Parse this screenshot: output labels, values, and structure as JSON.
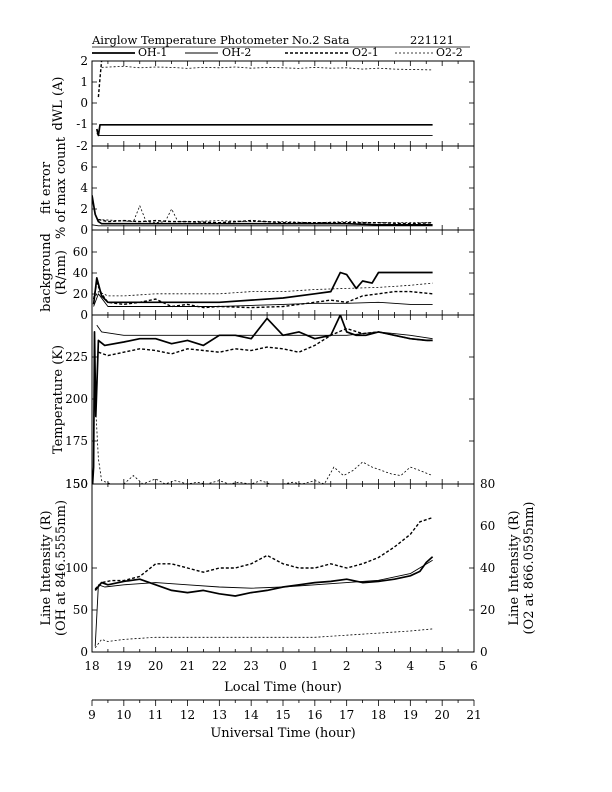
{
  "header": {
    "title": "Airglow Temperature Photometer No.2  Sata",
    "date": "221121"
  },
  "legend": [
    {
      "name": "OH-1",
      "style": "solid-thick"
    },
    {
      "name": "OH-2",
      "style": "solid-thin"
    },
    {
      "name": "O2-1",
      "style": "dashed-thick"
    },
    {
      "name": "O2-2",
      "style": "dashed-thin"
    }
  ],
  "chart_data": [
    {
      "type": "line",
      "id": "dwl",
      "ylabel": "dWL (A)",
      "ylim": [
        -2,
        2
      ],
      "yticks": [
        "2",
        "1",
        "0",
        "-1",
        "-2"
      ],
      "series": [
        {
          "name": "OH-1",
          "x": [
            18.15,
            18.2,
            18.25,
            18.4,
            19,
            20,
            21,
            22,
            23,
            24,
            25,
            26,
            27,
            28,
            28.7
          ],
          "y": [
            -1.2,
            -1.5,
            -1.0,
            -1.0,
            -1.0,
            -1.0,
            -1.0,
            -1.0,
            -1.0,
            -1.0,
            -1.0,
            -1.0,
            -1.0,
            -1.0,
            -1.0
          ]
        },
        {
          "name": "OH-2",
          "x": [
            18.15,
            18.2,
            18.3,
            19,
            20,
            21,
            22,
            23,
            24,
            25,
            26,
            27,
            28,
            28.7
          ],
          "y": [
            -1.4,
            -1.5,
            -1.5,
            -1.5,
            -1.5,
            -1.5,
            -1.5,
            -1.5,
            -1.5,
            -1.5,
            -1.5,
            -1.5,
            -1.5,
            -1.5
          ]
        },
        {
          "name": "O2-1",
          "x": [
            18.2,
            18.25,
            18.3
          ],
          "y": [
            0.3,
            1.2,
            2.0
          ]
        },
        {
          "name": "O2-2",
          "x": [
            18.3,
            19,
            19.5,
            20,
            20.5,
            21,
            21.5,
            22,
            22.5,
            23,
            23.5,
            24,
            24.5,
            25,
            25.5,
            26,
            26.5,
            27,
            27.5,
            28,
            28.7
          ],
          "y": [
            1.7,
            1.75,
            1.68,
            1.72,
            1.7,
            1.65,
            1.7,
            1.68,
            1.72,
            1.66,
            1.7,
            1.68,
            1.65,
            1.7,
            1.66,
            1.68,
            1.62,
            1.66,
            1.62,
            1.6,
            1.58
          ]
        }
      ]
    },
    {
      "type": "line",
      "id": "fit-error",
      "ylabel": "fit error",
      "ylabel2": "% of max count",
      "ylim": [
        0,
        8
      ],
      "yticks": [
        "6",
        "4",
        "2",
        "0"
      ],
      "series": [
        {
          "name": "OH-1",
          "x": [
            18.0,
            18.1,
            18.2,
            18.3,
            19,
            20,
            21,
            22,
            23,
            24,
            25,
            26,
            27,
            28,
            28.7
          ],
          "y": [
            3.3,
            1.5,
            0.8,
            0.6,
            0.6,
            0.6,
            0.6,
            0.6,
            0.6,
            0.6,
            0.6,
            0.6,
            0.5,
            0.5,
            0.5
          ]
        },
        {
          "name": "OH-2",
          "x": [
            18.0,
            18.2,
            19,
            20,
            21,
            22,
            23,
            24,
            25,
            26,
            27,
            28,
            28.7
          ],
          "y": [
            0.5,
            0.4,
            0.4,
            0.4,
            0.4,
            0.4,
            0.4,
            0.4,
            0.4,
            0.4,
            0.4,
            0.4,
            0.4
          ]
        },
        {
          "name": "O2-1",
          "x": [
            18.2,
            18.5,
            19,
            19.5,
            20,
            20.5,
            21,
            22,
            23,
            24,
            25,
            26,
            27,
            28,
            28.7
          ],
          "y": [
            1.0,
            0.8,
            0.9,
            0.8,
            0.9,
            0.8,
            0.8,
            0.7,
            0.9,
            0.7,
            0.7,
            0.7,
            0.7,
            0.6,
            0.7
          ]
        },
        {
          "name": "O2-2",
          "x": [
            18.2,
            18.8,
            19.3,
            19.5,
            19.7,
            20.0,
            20.3,
            20.5,
            20.7,
            21,
            22,
            23,
            24,
            25,
            26,
            27,
            28,
            28.7
          ],
          "y": [
            1.0,
            0.9,
            0.8,
            2.3,
            0.8,
            0.7,
            0.8,
            2.0,
            0.8,
            0.8,
            0.9,
            0.8,
            0.8,
            0.7,
            0.8,
            0.7,
            0.7,
            0.7
          ]
        }
      ]
    },
    {
      "type": "line",
      "id": "background",
      "ylabel": "background",
      "ylabel2": "(R/nm)",
      "ylim": [
        0,
        80
      ],
      "yticks": [
        "60",
        "40",
        "20",
        "0"
      ],
      "series": [
        {
          "name": "OH-1",
          "x": [
            18.05,
            18.15,
            18.3,
            18.5,
            19,
            20,
            21,
            22,
            23,
            24,
            25,
            25.5,
            25.8,
            26.0,
            26.3,
            26.5,
            26.8,
            27,
            27.2,
            28,
            28.7
          ],
          "y": [
            10,
            35,
            18,
            12,
            12,
            12,
            12,
            12,
            14,
            16,
            20,
            22,
            40,
            38,
            25,
            32,
            30,
            40,
            40,
            40,
            40
          ]
        },
        {
          "name": "OH-2",
          "x": [
            18.05,
            18.2,
            18.5,
            19,
            20,
            21,
            22,
            23,
            24,
            25,
            26,
            27,
            28,
            28.7
          ],
          "y": [
            8,
            20,
            8,
            8,
            8,
            8,
            8,
            9,
            10,
            11,
            11,
            12,
            10,
            10
          ]
        },
        {
          "name": "O2-1",
          "x": [
            18.05,
            18.15,
            18.3,
            18.5,
            19,
            19.5,
            20,
            20.5,
            21,
            21.5,
            22,
            23,
            24,
            24.5,
            25,
            25.5,
            26,
            26.5,
            27,
            27.5,
            28,
            28.7
          ],
          "y": [
            15,
            30,
            20,
            12,
            10,
            12,
            15,
            8,
            10,
            7,
            8,
            7,
            8,
            10,
            12,
            14,
            12,
            18,
            20,
            22,
            22,
            20
          ]
        },
        {
          "name": "O2-2",
          "x": [
            18.05,
            18.2,
            18.5,
            19,
            20,
            21,
            22,
            23,
            24,
            25,
            26,
            27,
            28,
            28.7
          ],
          "y": [
            15,
            22,
            18,
            18,
            20,
            20,
            20,
            22,
            22,
            24,
            25,
            26,
            28,
            30
          ]
        }
      ]
    },
    {
      "type": "line",
      "id": "temperature",
      "ylabel": "Temperature (K)",
      "ylim": [
        150,
        250
      ],
      "yticks": [
        "225",
        "200",
        "175",
        "150"
      ],
      "series": [
        {
          "name": "OH-1",
          "x": [
            18.02,
            18.05,
            18.08,
            18.12,
            18.2,
            18.4,
            19,
            19.5,
            20,
            20.5,
            21,
            21.5,
            22,
            22.5,
            23,
            23.5,
            24,
            24.5,
            25,
            25.5,
            25.8,
            26.0,
            26.3,
            26.6,
            27,
            27.5,
            28,
            28.5,
            28.7
          ],
          "y": [
            150,
            160,
            240,
            190,
            235,
            232,
            234,
            236,
            236,
            233,
            235,
            232,
            238,
            238,
            236,
            248,
            238,
            240,
            236,
            238,
            250,
            240,
            238,
            238,
            240,
            238,
            236,
            235,
            235
          ]
        },
        {
          "name": "OH-2",
          "x": [
            18.15,
            18.3,
            19,
            20,
            21,
            22,
            23,
            24,
            25,
            26,
            27,
            28,
            28.7
          ],
          "y": [
            244,
            240,
            238,
            238,
            238,
            238,
            238,
            238,
            238,
            238,
            240,
            238,
            236
          ]
        },
        {
          "name": "O2-1",
          "x": [
            18.2,
            18.5,
            19,
            19.5,
            20,
            20.5,
            21,
            21.5,
            22,
            22.5,
            23,
            23.5,
            24,
            24.5,
            25,
            25.5,
            26,
            26.5,
            27,
            27.5,
            28,
            28.5,
            28.7
          ],
          "y": [
            228,
            226,
            228,
            230,
            229,
            227,
            230,
            229,
            228,
            230,
            229,
            231,
            230,
            228,
            232,
            238,
            242,
            239,
            240,
            238,
            236,
            235,
            235
          ]
        },
        {
          "name": "O2-2",
          "x": [
            18.1,
            18.2,
            18.3,
            18.6,
            19,
            19.3,
            19.6,
            20,
            20.3,
            20.6,
            21,
            21.3,
            21.6,
            22,
            22.3,
            22.6,
            23,
            23.3,
            23.6,
            24,
            24.3,
            24.6,
            25,
            25.3,
            25.6,
            25.9,
            26.2,
            26.5,
            26.8,
            27.1,
            27.4,
            27.7,
            28,
            28.3,
            28.7
          ],
          "y": [
            200,
            165,
            152,
            150,
            150,
            155,
            150,
            153,
            150,
            152,
            150,
            151,
            150,
            152,
            150,
            151,
            150,
            152,
            150,
            150,
            151,
            150,
            152,
            150,
            160,
            155,
            158,
            163,
            160,
            158,
            156,
            155,
            160,
            158,
            155
          ]
        }
      ]
    },
    {
      "type": "line",
      "id": "line-intensity",
      "ylabel": "Line Intensity (R)",
      "ylabel2": "(OH at 846.5555nm)",
      "ylim": [
        0,
        150
      ],
      "yticks": [
        "150",
        "100",
        "50",
        "0"
      ],
      "ylabel_right": "Line Intensity (R)",
      "ylabel_right2": "(O2 at 866.0595nm)",
      "ylim_right": [
        0,
        80
      ],
      "yticks_right": [
        "80",
        "60",
        "40",
        "20",
        "0"
      ],
      "xlabel": "Local Time (hour)",
      "xlim": [
        18,
        30
      ],
      "xticks": [
        "18",
        "19",
        "20",
        "21",
        "22",
        "23",
        "0",
        "1",
        "2",
        "3",
        "4",
        "5",
        "6"
      ],
      "xlabel_secondary": "Universal Time (hour)",
      "xticks_secondary": [
        "9",
        "10",
        "11",
        "12",
        "13",
        "14",
        "15",
        "16",
        "17",
        "18",
        "19",
        "20",
        "21"
      ],
      "series": [
        {
          "name": "OH-1",
          "axis": "left",
          "x": [
            18.1,
            18.3,
            18.5,
            19,
            19.5,
            20,
            20.5,
            21,
            21.5,
            22,
            22.5,
            23,
            23.5,
            24,
            24.5,
            25,
            25.5,
            26,
            26.5,
            27,
            27.5,
            28,
            28.3,
            28.5,
            28.7
          ],
          "y": [
            55,
            62,
            60,
            63,
            65,
            60,
            55,
            53,
            55,
            52,
            50,
            53,
            55,
            58,
            60,
            62,
            63,
            65,
            62,
            63,
            65,
            68,
            72,
            80,
            85
          ]
        },
        {
          "name": "OH-2",
          "axis": "left",
          "x": [
            18.1,
            18.2,
            18.4,
            19,
            20,
            21,
            22,
            23,
            24,
            25,
            26,
            27,
            28,
            28.7
          ],
          "y": [
            5,
            60,
            58,
            60,
            62,
            60,
            58,
            57,
            58,
            60,
            62,
            64,
            70,
            82
          ]
        },
        {
          "name": "O2-1",
          "axis": "right",
          "x": [
            18.1,
            18.3,
            18.6,
            19,
            19.5,
            20,
            20.5,
            21,
            21.5,
            22,
            22.5,
            23,
            23.5,
            24,
            24.5,
            25,
            25.5,
            26,
            26.5,
            27,
            27.5,
            28,
            28.3,
            28.7
          ],
          "y": [
            30,
            33,
            34,
            34,
            36,
            42,
            42,
            40,
            38,
            40,
            40,
            42,
            46,
            42,
            40,
            40,
            42,
            40,
            42,
            45,
            50,
            56,
            62,
            64
          ]
        },
        {
          "name": "O2-2",
          "axis": "right",
          "x": [
            18.1,
            18.3,
            18.5,
            19,
            20,
            21,
            22,
            23,
            24,
            25,
            26,
            27,
            28,
            28.7
          ],
          "y": [
            2,
            6,
            5,
            6,
            7,
            7,
            7,
            7,
            7,
            7,
            8,
            9,
            10,
            11
          ]
        }
      ]
    }
  ]
}
